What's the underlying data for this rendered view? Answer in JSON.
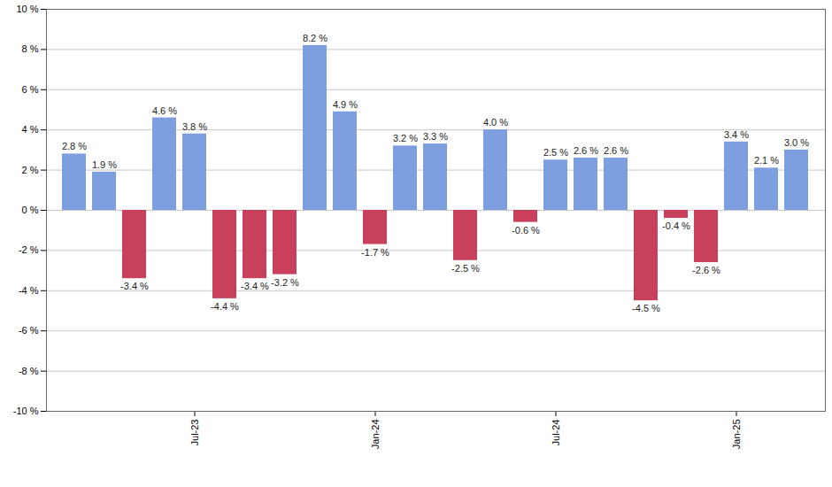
{
  "chart_data": {
    "type": "bar",
    "categories": [
      null,
      null,
      null,
      null,
      "Jul-23",
      null,
      null,
      null,
      null,
      null,
      "Jan-24",
      null,
      null,
      null,
      null,
      null,
      "Jul-24",
      null,
      null,
      null,
      null,
      null,
      "Jan-25",
      null,
      null
    ],
    "values": [
      2.8,
      1.9,
      -3.4,
      4.6,
      3.8,
      -4.4,
      -3.4,
      -3.2,
      8.2,
      4.9,
      -1.7,
      3.2,
      3.3,
      -2.5,
      4.0,
      -0.6,
      2.5,
      2.6,
      2.6,
      -4.5,
      -0.4,
      -2.6,
      3.4,
      2.1,
      3.0
    ],
    "value_labels": [
      "2.8 %",
      "1.9 %",
      "-3.4 %",
      "4.6 %",
      "3.8 %",
      "-4.4 %",
      "-3.4 %",
      "-3.2 %",
      "8.2 %",
      "4.9 %",
      "-1.7 %",
      "3.2 %",
      "3.3 %",
      "-2.5 %",
      "4.0 %",
      "-0.6 %",
      "2.5 %",
      "2.6 %",
      "2.6 %",
      "-4.5 %",
      "-0.4 %",
      "-2.6 %",
      "3.4 %",
      "2.1 %",
      "3.0 %"
    ],
    "colors": [
      "#7d9fe0",
      "#7d9fe0",
      "#c8405c",
      "#7d9fe0",
      "#7d9fe0",
      "#c8405c",
      "#c8405c",
      "#c8405c",
      "#7d9fe0",
      "#7d9fe0",
      "#c8405c",
      "#7d9fe0",
      "#7d9fe0",
      "#c8405c",
      "#7d9fe0",
      "#c8405c",
      "#7d9fe0",
      "#7d9fe0",
      "#7d9fe0",
      "#c8405c",
      "#c8405c",
      "#c8405c",
      "#7d9fe0",
      "#7d9fe0",
      "#7d9fe0"
    ],
    "ylim": [
      -10,
      10
    ],
    "yticks": [
      {
        "value": -10,
        "label": "-10 %"
      },
      {
        "value": -8,
        "label": "-8 %"
      },
      {
        "value": -6,
        "label": "-6 %"
      },
      {
        "value": -4,
        "label": "-4 %"
      },
      {
        "value": -2,
        "label": "-2 %"
      },
      {
        "value": 0,
        "label": "0 %"
      },
      {
        "value": 2,
        "label": "2 %"
      },
      {
        "value": 4,
        "label": "4 %"
      },
      {
        "value": 6,
        "label": "6 %"
      },
      {
        "value": 8,
        "label": "8 %"
      },
      {
        "value": 10,
        "label": "10 %"
      }
    ],
    "grid": true,
    "data_labels": true
  }
}
